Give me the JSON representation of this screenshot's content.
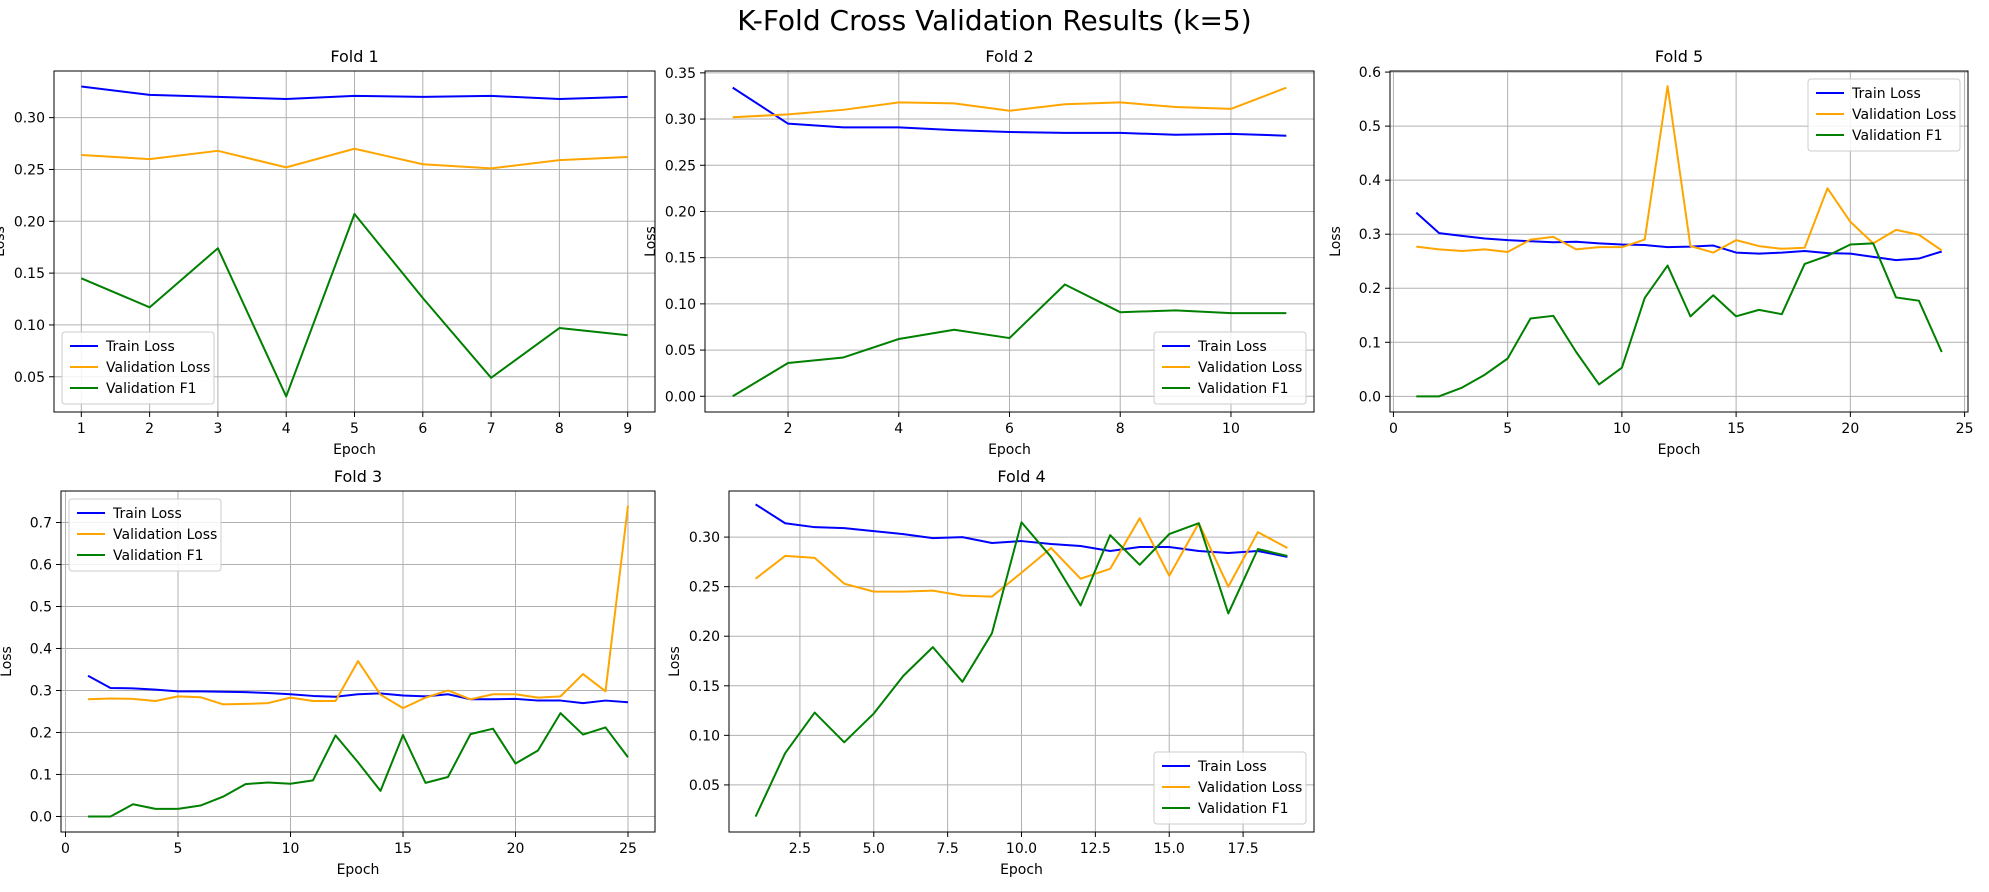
{
  "title": "K-Fold Cross Validation Results (k=5)",
  "colors": {
    "train_loss": "#0000ff",
    "validation_loss": "#ffa500",
    "validation_f1": "#008000"
  },
  "chart_data": [
    {
      "type": "line",
      "title": "Fold 1",
      "xlabel": "Epoch",
      "ylabel": "Loss",
      "xlim": [
        0.6,
        9.4
      ],
      "ylim": [
        0.016,
        0.345
      ],
      "xticks": [
        1,
        2,
        3,
        4,
        5,
        6,
        7,
        8,
        9
      ],
      "xticklabels": [
        "1",
        "2",
        "3",
        "4",
        "5",
        "6",
        "7",
        "8",
        "9"
      ],
      "yticks": [
        0.05,
        0.1,
        0.15,
        0.2,
        0.25,
        0.3
      ],
      "yticklabels": [
        "0.05",
        "0.10",
        "0.15",
        "0.20",
        "0.25",
        "0.30"
      ],
      "grid": true,
      "legend": "lower-left",
      "x": [
        1,
        2,
        3,
        4,
        5,
        6,
        7,
        8,
        9
      ],
      "series": [
        {
          "name": "Train Loss",
          "color": "#0000ff",
          "values": [
            0.33,
            0.322,
            0.32,
            0.318,
            0.321,
            0.32,
            0.321,
            0.318,
            0.32
          ]
        },
        {
          "name": "Validation Loss",
          "color": "#ffa500",
          "values": [
            0.264,
            0.26,
            0.268,
            0.252,
            0.27,
            0.255,
            0.251,
            0.259,
            0.262
          ]
        },
        {
          "name": "Validation F1",
          "color": "#008000",
          "values": [
            0.145,
            0.117,
            0.174,
            0.031,
            0.207,
            0.126,
            0.049,
            0.097,
            0.09
          ]
        }
      ]
    },
    {
      "type": "line",
      "title": "Fold 2",
      "xlabel": "Epoch",
      "ylabel": "Loss",
      "xlim": [
        0.5,
        11.5
      ],
      "ylim": [
        -0.017,
        0.352
      ],
      "xticks": [
        2,
        4,
        6,
        8,
        10
      ],
      "xticklabels": [
        "2",
        "4",
        "6",
        "8",
        "10"
      ],
      "yticks": [
        0.0,
        0.05,
        0.1,
        0.15,
        0.2,
        0.25,
        0.3,
        0.35
      ],
      "yticklabels": [
        "0.00",
        "0.05",
        "0.10",
        "0.15",
        "0.20",
        "0.25",
        "0.30",
        "0.35"
      ],
      "grid": true,
      "legend": "lower-right",
      "x": [
        1,
        2,
        3,
        4,
        5,
        6,
        7,
        8,
        9,
        10,
        11
      ],
      "series": [
        {
          "name": "Train Loss",
          "color": "#0000ff",
          "values": [
            0.334,
            0.295,
            0.291,
            0.291,
            0.288,
            0.286,
            0.285,
            0.285,
            0.283,
            0.284,
            0.282
          ]
        },
        {
          "name": "Validation Loss",
          "color": "#ffa500",
          "values": [
            0.302,
            0.305,
            0.31,
            0.318,
            0.317,
            0.309,
            0.316,
            0.318,
            0.313,
            0.311,
            0.334
          ]
        },
        {
          "name": "Validation F1",
          "color": "#008000",
          "values": [
            0.0,
            0.036,
            0.042,
            0.062,
            0.072,
            0.063,
            0.121,
            0.091,
            0.093,
            0.09,
            0.09
          ]
        }
      ]
    },
    {
      "type": "line",
      "title": "Fold 5",
      "xlabel": "Epoch",
      "ylabel": "Loss",
      "xlim": [
        -0.15,
        25.15
      ],
      "ylim": [
        -0.029,
        0.602
      ],
      "xticks": [
        0,
        5,
        10,
        15,
        20,
        25
      ],
      "xticklabels": [
        "0",
        "5",
        "10",
        "15",
        "20",
        "25"
      ],
      "yticks": [
        0.0,
        0.1,
        0.2,
        0.3,
        0.4,
        0.5,
        0.6
      ],
      "yticklabels": [
        "0.0",
        "0.1",
        "0.2",
        "0.3",
        "0.4",
        "0.5",
        "0.6"
      ],
      "grid": true,
      "legend": "upper-right",
      "x": [
        1,
        2,
        3,
        4,
        5,
        6,
        7,
        8,
        9,
        10,
        11,
        12,
        13,
        14,
        15,
        16,
        17,
        18,
        19,
        20,
        21,
        22,
        23,
        24
      ],
      "series": [
        {
          "name": "Train Loss",
          "color": "#0000ff",
          "values": [
            0.34,
            0.302,
            0.297,
            0.292,
            0.289,
            0.287,
            0.285,
            0.286,
            0.283,
            0.281,
            0.28,
            0.276,
            0.277,
            0.279,
            0.266,
            0.264,
            0.266,
            0.269,
            0.265,
            0.264,
            0.258,
            0.252,
            0.255,
            0.268
          ]
        },
        {
          "name": "Validation Loss",
          "color": "#ffa500",
          "values": [
            0.277,
            0.272,
            0.269,
            0.272,
            0.267,
            0.29,
            0.295,
            0.272,
            0.276,
            0.276,
            0.29,
            0.574,
            0.278,
            0.266,
            0.289,
            0.278,
            0.273,
            0.275,
            0.385,
            0.323,
            0.283,
            0.308,
            0.299,
            0.27
          ]
        },
        {
          "name": "Validation F1",
          "color": "#008000",
          "values": [
            0.0,
            0.0,
            0.016,
            0.04,
            0.07,
            0.144,
            0.149,
            0.082,
            0.022,
            0.053,
            0.182,
            0.242,
            0.148,
            0.187,
            0.148,
            0.16,
            0.152,
            0.245,
            0.26,
            0.281,
            0.283,
            0.183,
            0.177,
            0.082
          ]
        }
      ]
    },
    {
      "type": "line",
      "title": "Fold 3",
      "xlabel": "Epoch",
      "ylabel": "Loss",
      "xlim": [
        -0.2,
        26.2
      ],
      "ylim": [
        -0.037,
        0.775
      ],
      "xticks": [
        0,
        5,
        10,
        15,
        20,
        25
      ],
      "xticklabels": [
        "0",
        "5",
        "10",
        "15",
        "20",
        "25"
      ],
      "yticks": [
        0.0,
        0.1,
        0.2,
        0.3,
        0.4,
        0.5,
        0.6,
        0.7
      ],
      "yticklabels": [
        "0.0",
        "0.1",
        "0.2",
        "0.3",
        "0.4",
        "0.5",
        "0.6",
        "0.7"
      ],
      "grid": true,
      "legend": "upper-left",
      "x": [
        1,
        2,
        3,
        4,
        5,
        6,
        7,
        8,
        9,
        10,
        11,
        12,
        13,
        14,
        15,
        16,
        17,
        18,
        19,
        20,
        21,
        22,
        23,
        24,
        25
      ],
      "series": [
        {
          "name": "Train Loss",
          "color": "#0000ff",
          "values": [
            0.335,
            0.306,
            0.305,
            0.302,
            0.298,
            0.298,
            0.297,
            0.296,
            0.294,
            0.291,
            0.287,
            0.285,
            0.291,
            0.293,
            0.288,
            0.286,
            0.291,
            0.279,
            0.279,
            0.28,
            0.276,
            0.276,
            0.27,
            0.276,
            0.272
          ]
        },
        {
          "name": "Validation Loss",
          "color": "#ffa500",
          "values": [
            0.279,
            0.281,
            0.28,
            0.275,
            0.286,
            0.284,
            0.267,
            0.268,
            0.27,
            0.283,
            0.275,
            0.275,
            0.37,
            0.29,
            0.258,
            0.283,
            0.3,
            0.279,
            0.291,
            0.291,
            0.283,
            0.286,
            0.339,
            0.298,
            0.74
          ]
        },
        {
          "name": "Validation F1",
          "color": "#008000",
          "values": [
            0.0,
            0.0,
            0.029,
            0.018,
            0.018,
            0.026,
            0.047,
            0.077,
            0.081,
            0.078,
            0.086,
            0.193,
            0.129,
            0.061,
            0.194,
            0.08,
            0.094,
            0.196,
            0.209,
            0.126,
            0.157,
            0.246,
            0.195,
            0.212,
            0.141
          ]
        }
      ]
    },
    {
      "type": "line",
      "title": "Fold 4",
      "xlabel": "Epoch",
      "ylabel": "Loss",
      "xlim": [
        0.1,
        19.9
      ],
      "ylim": [
        0.0025,
        0.3465
      ],
      "xticks": [
        2.5,
        5.0,
        7.5,
        10.0,
        12.5,
        15.0,
        17.5
      ],
      "xticklabels": [
        "2.5",
        "5.0",
        "7.5",
        "10.0",
        "12.5",
        "15.0",
        "17.5"
      ],
      "yticks": [
        0.05,
        0.1,
        0.15,
        0.2,
        0.25,
        0.3
      ],
      "yticklabels": [
        "0.05",
        "0.10",
        "0.15",
        "0.20",
        "0.25",
        "0.30"
      ],
      "grid": true,
      "legend": "lower-right",
      "x": [
        1,
        2,
        3,
        4,
        5,
        6,
        7,
        8,
        9,
        10,
        11,
        12,
        13,
        14,
        15,
        16,
        17,
        18,
        19
      ],
      "series": [
        {
          "name": "Train Loss",
          "color": "#0000ff",
          "values": [
            0.333,
            0.314,
            0.31,
            0.309,
            0.306,
            0.303,
            0.299,
            0.3,
            0.294,
            0.296,
            0.293,
            0.291,
            0.286,
            0.29,
            0.29,
            0.286,
            0.284,
            0.286,
            0.28
          ]
        },
        {
          "name": "Validation Loss",
          "color": "#ffa500",
          "values": [
            0.258,
            0.281,
            0.279,
            0.253,
            0.245,
            0.245,
            0.246,
            0.241,
            0.24,
            0.264,
            0.289,
            0.258,
            0.268,
            0.319,
            0.261,
            0.314,
            0.25,
            0.305,
            0.289
          ]
        },
        {
          "name": "Validation F1",
          "color": "#008000",
          "values": [
            0.018,
            0.082,
            0.123,
            0.093,
            0.122,
            0.16,
            0.189,
            0.154,
            0.203,
            0.315,
            0.28,
            0.231,
            0.302,
            0.272,
            0.303,
            0.314,
            0.223,
            0.288,
            0.281
          ]
        }
      ]
    }
  ]
}
